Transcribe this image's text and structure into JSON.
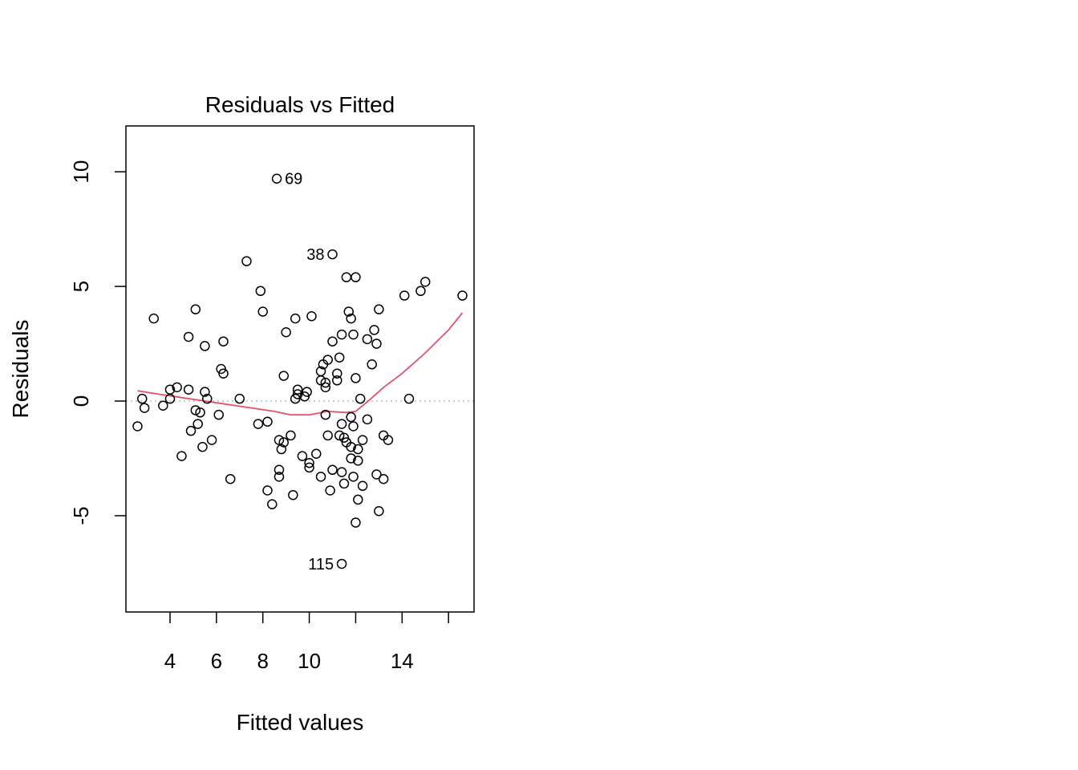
{
  "chart_data": {
    "type": "scatter",
    "title": "Residuals vs Fitted",
    "xlabel": "Fitted values",
    "ylabel": "Residuals",
    "xlim": [
      2.1,
      17.1
    ],
    "ylim": [
      -9.2,
      12.0
    ],
    "xticks": [
      4,
      6,
      8,
      10,
      12,
      14,
      16
    ],
    "xtick_labels": [
      "4",
      "6",
      "8",
      "10",
      "",
      "14",
      ""
    ],
    "yticks": [
      -5,
      0,
      5,
      10
    ],
    "ytick_labels": [
      "-5",
      "0",
      "5",
      "10"
    ],
    "reference_line": {
      "y": 0,
      "style": "dotted",
      "color": "#bbbbbb"
    },
    "smooth_color": "#DF536B",
    "point_color": "#000000",
    "points": [
      [
        8.6,
        9.7
      ],
      [
        11.0,
        6.4
      ],
      [
        11.4,
        -7.1
      ],
      [
        7.3,
        6.1
      ],
      [
        7.9,
        4.8
      ],
      [
        8.0,
        3.9
      ],
      [
        9.4,
        3.6
      ],
      [
        10.1,
        3.7
      ],
      [
        9.0,
        3.0
      ],
      [
        3.3,
        3.6
      ],
      [
        5.1,
        4.0
      ],
      [
        4.8,
        2.8
      ],
      [
        5.5,
        2.4
      ],
      [
        6.3,
        2.6
      ],
      [
        6.2,
        1.4
      ],
      [
        6.3,
        1.2
      ],
      [
        2.8,
        0.1
      ],
      [
        2.9,
        -0.3
      ],
      [
        3.7,
        -0.2
      ],
      [
        4.0,
        0.5
      ],
      [
        4.3,
        0.6
      ],
      [
        4.8,
        0.5
      ],
      [
        4.0,
        0.1
      ],
      [
        5.1,
        -0.4
      ],
      [
        5.3,
        -0.5
      ],
      [
        5.6,
        0.1
      ],
      [
        5.5,
        0.4
      ],
      [
        5.2,
        -1.0
      ],
      [
        4.9,
        -1.3
      ],
      [
        5.8,
        -1.7
      ],
      [
        5.4,
        -2.0
      ],
      [
        4.5,
        -2.4
      ],
      [
        2.6,
        -1.1
      ],
      [
        6.1,
        -0.6
      ],
      [
        6.6,
        -3.4
      ],
      [
        7.0,
        0.1
      ],
      [
        7.8,
        -1.0
      ],
      [
        8.2,
        -0.9
      ],
      [
        8.2,
        -3.9
      ],
      [
        8.4,
        -4.5
      ],
      [
        8.7,
        -3.3
      ],
      [
        8.7,
        -3.0
      ],
      [
        8.7,
        -1.7
      ],
      [
        8.8,
        -2.1
      ],
      [
        8.9,
        -1.8
      ],
      [
        9.2,
        -1.5
      ],
      [
        9.3,
        -4.1
      ],
      [
        8.9,
        1.1
      ],
      [
        9.5,
        0.5
      ],
      [
        9.4,
        0.1
      ],
      [
        9.5,
        0.3
      ],
      [
        9.9,
        0.4
      ],
      [
        9.8,
        0.2
      ],
      [
        9.7,
        -2.4
      ],
      [
        10.0,
        -2.7
      ],
      [
        10.0,
        -2.9
      ],
      [
        10.3,
        -2.3
      ],
      [
        10.5,
        1.3
      ],
      [
        10.5,
        0.9
      ],
      [
        10.7,
        0.8
      ],
      [
        10.6,
        1.6
      ],
      [
        10.8,
        1.8
      ],
      [
        10.7,
        0.6
      ],
      [
        10.7,
        -0.6
      ],
      [
        10.8,
        -1.5
      ],
      [
        11.0,
        2.6
      ],
      [
        11.2,
        1.2
      ],
      [
        11.2,
        0.9
      ],
      [
        11.3,
        1.9
      ],
      [
        11.4,
        2.9
      ],
      [
        11.6,
        5.4
      ],
      [
        11.7,
        3.9
      ],
      [
        11.8,
        3.6
      ],
      [
        11.9,
        2.9
      ],
      [
        12.0,
        5.4
      ],
      [
        12.0,
        1.0
      ],
      [
        12.2,
        0.1
      ],
      [
        11.4,
        -1.0
      ],
      [
        11.3,
        -1.5
      ],
      [
        11.5,
        -1.6
      ],
      [
        11.6,
        -1.8
      ],
      [
        11.8,
        -2.0
      ],
      [
        11.9,
        -1.1
      ],
      [
        11.8,
        -0.7
      ],
      [
        11.8,
        -2.5
      ],
      [
        12.1,
        -2.6
      ],
      [
        12.1,
        -2.1
      ],
      [
        12.3,
        -1.7
      ],
      [
        12.5,
        -0.8
      ],
      [
        11.0,
        -3.0
      ],
      [
        11.4,
        -3.1
      ],
      [
        10.5,
        -3.3
      ],
      [
        10.9,
        -3.9
      ],
      [
        11.5,
        -3.6
      ],
      [
        11.9,
        -3.3
      ],
      [
        12.3,
        -3.7
      ],
      [
        12.1,
        -4.3
      ],
      [
        12.0,
        -5.3
      ],
      [
        12.5,
        2.7
      ],
      [
        12.7,
        1.6
      ],
      [
        12.8,
        3.1
      ],
      [
        12.9,
        2.5
      ],
      [
        13.0,
        4.0
      ],
      [
        12.9,
        -3.2
      ],
      [
        13.0,
        -4.8
      ],
      [
        13.2,
        -1.5
      ],
      [
        13.4,
        -1.7
      ],
      [
        13.2,
        -3.4
      ],
      [
        14.1,
        4.6
      ],
      [
        14.8,
        4.8
      ],
      [
        15.0,
        5.2
      ],
      [
        16.6,
        4.6
      ],
      [
        14.3,
        0.1
      ]
    ],
    "point_labels": [
      {
        "text": "69",
        "x": 8.6,
        "y": 9.7,
        "side": "right"
      },
      {
        "text": "38",
        "x": 11.0,
        "y": 6.4,
        "side": "left"
      },
      {
        "text": "115",
        "x": 11.4,
        "y": -7.1,
        "side": "left"
      }
    ],
    "smooth": [
      [
        2.6,
        0.45
      ],
      [
        3.5,
        0.3
      ],
      [
        4.5,
        0.15
      ],
      [
        5.5,
        0.0
      ],
      [
        6.5,
        -0.15
      ],
      [
        7.5,
        -0.3
      ],
      [
        8.5,
        -0.45
      ],
      [
        9.2,
        -0.6
      ],
      [
        10.0,
        -0.6
      ],
      [
        10.8,
        -0.45
      ],
      [
        11.6,
        -0.5
      ],
      [
        12.0,
        -0.45
      ],
      [
        12.6,
        0.05
      ],
      [
        13.2,
        0.6
      ],
      [
        14.0,
        1.2
      ],
      [
        15.0,
        2.1
      ],
      [
        16.0,
        3.1
      ],
      [
        16.6,
        3.85
      ]
    ]
  }
}
